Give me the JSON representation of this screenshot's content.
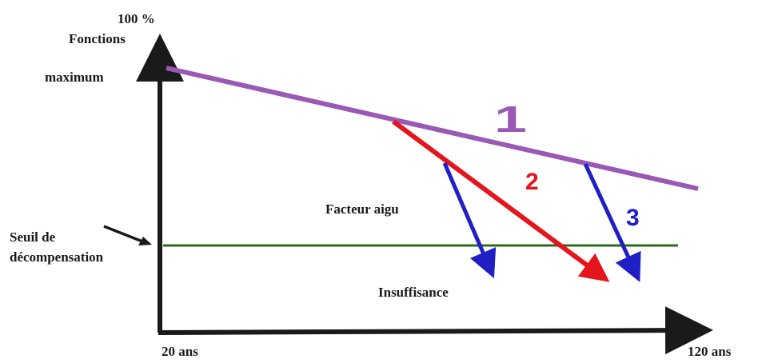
{
  "labels": {
    "y_top_percent": "100 %",
    "y_top_functions": "Fonctions",
    "y_top_maximum": "maximum",
    "threshold_line1": "Seuil de",
    "threshold_line2": "décompensation",
    "x_start": "20 ans",
    "x_end": "120 ans",
    "acute_factor": "Facteur aigu",
    "insufficiency": "Insuffisance"
  },
  "curves": {
    "curve1": "1",
    "curve2": "2",
    "curve3": "3"
  },
  "colors": {
    "axis": "#1a1a1a",
    "curve1": "#9b59b6",
    "curve2": "#e4151c",
    "curve3": "#1f1fc4",
    "threshold": "#2e6b1a"
  }
}
